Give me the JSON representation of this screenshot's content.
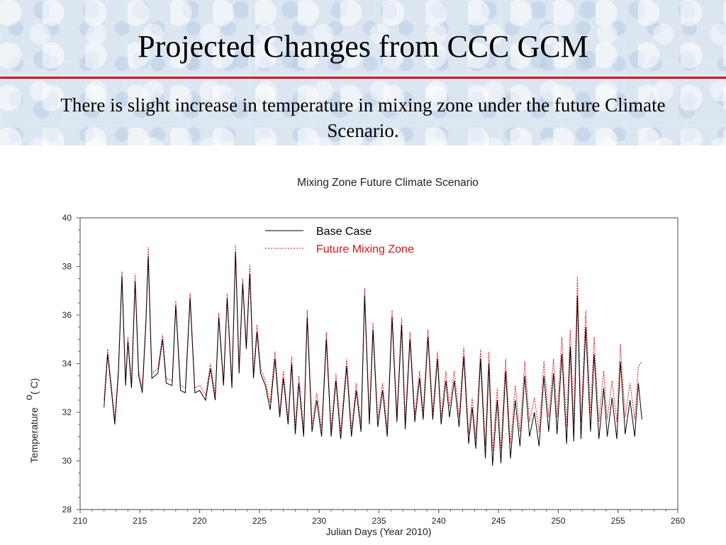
{
  "slide": {
    "title": "Projected Changes from CCC GCM",
    "subtitle": "There is slight increase in temperature in mixing zone under the future Climate Scenario."
  },
  "colors": {
    "accent_rule": "#d9141c",
    "base_case": "#000000",
    "future": "#d9141c"
  },
  "chart_data": {
    "type": "line",
    "title": "Mixing Zone Future Climate Scenario",
    "xlabel": "Julian Days (Year 2010)",
    "ylabel": "Temperature",
    "ylabel_unit": "( C)",
    "ylabel_superscript": "o",
    "xlim": [
      210,
      260
    ],
    "ylim": [
      28,
      40
    ],
    "xticks": [
      "210",
      "215",
      "220",
      "225",
      "230",
      "235",
      "240",
      "245",
      "250",
      "255",
      "260"
    ],
    "yticks": [
      "28",
      "30",
      "32",
      "34",
      "36",
      "38",
      "40"
    ],
    "legend_position": "top-center",
    "series": [
      {
        "name": "Base Case",
        "color": "#000000",
        "style": "solid",
        "points": [
          [
            212.0,
            32.2
          ],
          [
            212.3,
            34.4
          ],
          [
            212.6,
            33.0
          ],
          [
            212.9,
            31.5
          ],
          [
            213.2,
            33.6
          ],
          [
            213.5,
            37.6
          ],
          [
            213.8,
            33.1
          ],
          [
            214.0,
            34.9
          ],
          [
            214.3,
            33.0
          ],
          [
            214.6,
            37.4
          ],
          [
            214.9,
            33.5
          ],
          [
            215.2,
            32.8
          ],
          [
            215.5,
            35.6
          ],
          [
            215.7,
            38.4
          ],
          [
            216.0,
            33.4
          ],
          [
            216.5,
            33.6
          ],
          [
            216.9,
            35.0
          ],
          [
            217.2,
            33.2
          ],
          [
            217.7,
            33.1
          ],
          [
            218.0,
            36.4
          ],
          [
            218.4,
            32.9
          ],
          [
            218.8,
            32.8
          ],
          [
            219.2,
            36.7
          ],
          [
            219.6,
            32.8
          ],
          [
            220.0,
            32.9
          ],
          [
            220.5,
            32.5
          ],
          [
            220.9,
            33.8
          ],
          [
            221.3,
            32.5
          ],
          [
            221.6,
            35.9
          ],
          [
            222.0,
            33.1
          ],
          [
            222.3,
            36.7
          ],
          [
            222.7,
            33.0
          ],
          [
            223.0,
            38.6
          ],
          [
            223.3,
            33.6
          ],
          [
            223.6,
            37.3
          ],
          [
            223.9,
            34.6
          ],
          [
            224.2,
            37.7
          ],
          [
            224.5,
            33.4
          ],
          [
            224.8,
            35.3
          ],
          [
            225.1,
            33.6
          ],
          [
            225.5,
            33.1
          ],
          [
            225.9,
            32.1
          ],
          [
            226.3,
            34.2
          ],
          [
            226.7,
            31.8
          ],
          [
            227.0,
            33.4
          ],
          [
            227.4,
            31.5
          ],
          [
            227.7,
            34.0
          ],
          [
            228.0,
            31.1
          ],
          [
            228.3,
            33.2
          ],
          [
            228.7,
            31.0
          ],
          [
            229.0,
            35.9
          ],
          [
            229.4,
            31.2
          ],
          [
            229.8,
            32.5
          ],
          [
            230.2,
            31.0
          ],
          [
            230.6,
            35.0
          ],
          [
            231.0,
            31.0
          ],
          [
            231.4,
            33.3
          ],
          [
            231.8,
            30.9
          ],
          [
            232.3,
            33.9
          ],
          [
            232.7,
            31.0
          ],
          [
            233.1,
            32.9
          ],
          [
            233.5,
            31.2
          ],
          [
            233.8,
            36.8
          ],
          [
            234.2,
            31.5
          ],
          [
            234.5,
            35.4
          ],
          [
            234.9,
            31.4
          ],
          [
            235.3,
            32.9
          ],
          [
            235.7,
            31.0
          ],
          [
            236.1,
            35.9
          ],
          [
            236.5,
            31.6
          ],
          [
            236.9,
            35.6
          ],
          [
            237.2,
            31.3
          ],
          [
            237.6,
            35.0
          ],
          [
            238.0,
            31.6
          ],
          [
            238.4,
            33.4
          ],
          [
            238.7,
            31.7
          ],
          [
            239.1,
            35.1
          ],
          [
            239.5,
            31.7
          ],
          [
            239.9,
            34.2
          ],
          [
            240.2,
            31.5
          ],
          [
            240.6,
            33.3
          ],
          [
            240.9,
            31.8
          ],
          [
            241.3,
            33.3
          ],
          [
            241.7,
            31.4
          ],
          [
            242.1,
            34.3
          ],
          [
            242.5,
            30.7
          ],
          [
            242.8,
            32.2
          ],
          [
            243.1,
            30.5
          ],
          [
            243.5,
            34.2
          ],
          [
            243.9,
            30.1
          ],
          [
            244.2,
            34.0
          ],
          [
            244.5,
            29.8
          ],
          [
            244.9,
            32.5
          ],
          [
            245.2,
            29.9
          ],
          [
            245.6,
            33.7
          ],
          [
            246.0,
            30.1
          ],
          [
            246.4,
            32.5
          ],
          [
            246.8,
            30.6
          ],
          [
            247.2,
            33.5
          ],
          [
            247.6,
            31.0
          ],
          [
            248.0,
            32.0
          ],
          [
            248.4,
            30.6
          ],
          [
            248.8,
            33.5
          ],
          [
            249.2,
            31.2
          ],
          [
            249.6,
            33.6
          ],
          [
            249.9,
            31.1
          ],
          [
            250.3,
            34.4
          ],
          [
            250.7,
            30.7
          ],
          [
            251.0,
            34.7
          ],
          [
            251.3,
            30.8
          ],
          [
            251.6,
            36.8
          ],
          [
            251.9,
            30.9
          ],
          [
            252.3,
            35.5
          ],
          [
            252.7,
            31.2
          ],
          [
            253.0,
            34.4
          ],
          [
            253.4,
            30.9
          ],
          [
            253.8,
            33.0
          ],
          [
            254.1,
            31.0
          ],
          [
            254.5,
            32.6
          ],
          [
            254.9,
            30.9
          ],
          [
            255.2,
            34.1
          ],
          [
            255.6,
            31.1
          ],
          [
            256.0,
            32.5
          ],
          [
            256.4,
            31.0
          ],
          [
            256.7,
            33.2
          ],
          [
            257.0,
            31.7
          ]
        ]
      },
      {
        "name": "Future Mixing Zone",
        "color": "#d9141c",
        "style": "dashed",
        "points": [
          [
            212.0,
            32.5
          ],
          [
            212.3,
            34.6
          ],
          [
            212.6,
            33.2
          ],
          [
            212.9,
            31.7
          ],
          [
            213.2,
            33.8
          ],
          [
            213.5,
            37.8
          ],
          [
            213.8,
            33.3
          ],
          [
            214.0,
            35.1
          ],
          [
            214.3,
            33.2
          ],
          [
            214.6,
            37.7
          ],
          [
            214.9,
            33.7
          ],
          [
            215.2,
            33.0
          ],
          [
            215.5,
            35.8
          ],
          [
            215.7,
            38.8
          ],
          [
            216.0,
            33.6
          ],
          [
            216.5,
            33.8
          ],
          [
            216.9,
            35.2
          ],
          [
            217.2,
            33.4
          ],
          [
            217.7,
            33.3
          ],
          [
            218.0,
            36.6
          ],
          [
            218.4,
            33.1
          ],
          [
            218.8,
            33.0
          ],
          [
            219.2,
            36.9
          ],
          [
            219.6,
            33.0
          ],
          [
            220.0,
            33.1
          ],
          [
            220.5,
            32.7
          ],
          [
            220.9,
            34.0
          ],
          [
            221.3,
            32.7
          ],
          [
            221.6,
            36.1
          ],
          [
            222.0,
            33.3
          ],
          [
            222.3,
            36.9
          ],
          [
            222.7,
            33.2
          ],
          [
            223.0,
            38.9
          ],
          [
            223.3,
            33.8
          ],
          [
            223.6,
            37.5
          ],
          [
            223.9,
            34.8
          ],
          [
            224.2,
            38.1
          ],
          [
            224.5,
            33.6
          ],
          [
            224.8,
            35.6
          ],
          [
            225.1,
            33.8
          ],
          [
            225.5,
            33.3
          ],
          [
            225.9,
            32.4
          ],
          [
            226.3,
            34.5
          ],
          [
            226.7,
            32.0
          ],
          [
            227.0,
            33.7
          ],
          [
            227.4,
            31.7
          ],
          [
            227.7,
            34.3
          ],
          [
            228.0,
            31.4
          ],
          [
            228.3,
            33.5
          ],
          [
            228.7,
            31.3
          ],
          [
            229.0,
            36.2
          ],
          [
            229.4,
            31.5
          ],
          [
            229.8,
            32.8
          ],
          [
            230.2,
            31.3
          ],
          [
            230.6,
            35.3
          ],
          [
            231.0,
            31.3
          ],
          [
            231.4,
            33.6
          ],
          [
            231.8,
            31.2
          ],
          [
            232.3,
            34.2
          ],
          [
            232.7,
            31.3
          ],
          [
            233.1,
            33.2
          ],
          [
            233.5,
            31.5
          ],
          [
            233.8,
            37.1
          ],
          [
            234.2,
            31.8
          ],
          [
            234.5,
            35.7
          ],
          [
            234.9,
            31.7
          ],
          [
            235.3,
            33.2
          ],
          [
            235.7,
            31.3
          ],
          [
            236.1,
            36.2
          ],
          [
            236.5,
            31.9
          ],
          [
            236.9,
            35.9
          ],
          [
            237.2,
            31.6
          ],
          [
            237.6,
            35.3
          ],
          [
            238.0,
            31.9
          ],
          [
            238.4,
            33.7
          ],
          [
            238.7,
            32.0
          ],
          [
            239.1,
            35.4
          ],
          [
            239.5,
            32.0
          ],
          [
            239.9,
            34.5
          ],
          [
            240.2,
            31.8
          ],
          [
            240.6,
            33.7
          ],
          [
            240.9,
            32.2
          ],
          [
            241.3,
            33.7
          ],
          [
            241.7,
            31.8
          ],
          [
            242.1,
            34.7
          ],
          [
            242.5,
            31.1
          ],
          [
            242.8,
            32.6
          ],
          [
            243.1,
            30.9
          ],
          [
            243.5,
            34.6
          ],
          [
            243.9,
            30.6
          ],
          [
            244.2,
            34.5
          ],
          [
            244.5,
            30.4
          ],
          [
            244.9,
            33.0
          ],
          [
            245.2,
            30.5
          ],
          [
            245.6,
            34.2
          ],
          [
            246.0,
            30.7
          ],
          [
            246.4,
            33.1
          ],
          [
            246.8,
            31.2
          ],
          [
            247.2,
            34.1
          ],
          [
            247.6,
            31.6
          ],
          [
            248.0,
            32.6
          ],
          [
            248.4,
            31.2
          ],
          [
            248.8,
            34.1
          ],
          [
            249.2,
            31.8
          ],
          [
            249.6,
            34.2
          ],
          [
            249.9,
            31.8
          ],
          [
            250.3,
            35.1
          ],
          [
            250.7,
            31.4
          ],
          [
            251.0,
            35.4
          ],
          [
            251.3,
            31.5
          ],
          [
            251.6,
            37.6
          ],
          [
            251.9,
            31.6
          ],
          [
            252.3,
            36.2
          ],
          [
            252.7,
            31.9
          ],
          [
            253.0,
            35.1
          ],
          [
            253.4,
            31.6
          ],
          [
            253.8,
            33.7
          ],
          [
            254.1,
            31.7
          ],
          [
            254.5,
            33.3
          ],
          [
            254.9,
            31.6
          ],
          [
            255.2,
            34.8
          ],
          [
            255.6,
            31.8
          ],
          [
            256.0,
            33.2
          ],
          [
            256.4,
            31.7
          ],
          [
            256.7,
            33.9
          ],
          [
            257.0,
            34.1
          ]
        ]
      }
    ]
  }
}
